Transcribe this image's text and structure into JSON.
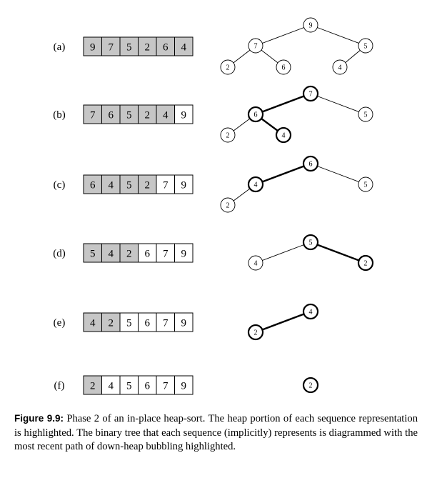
{
  "figure": {
    "rows": [
      {
        "label": "(a)",
        "cells": [
          {
            "value": "9",
            "heap": true
          },
          {
            "value": "7",
            "heap": true
          },
          {
            "value": "5",
            "heap": true
          },
          {
            "value": "2",
            "heap": true
          },
          {
            "value": "6",
            "heap": true
          },
          {
            "value": "4",
            "heap": true
          }
        ],
        "tree": {
          "nodes": [
            {
              "id": "n9",
              "value": "9"
            },
            {
              "id": "n7",
              "value": "7"
            },
            {
              "id": "n5",
              "value": "5"
            },
            {
              "id": "n2",
              "value": "2"
            },
            {
              "id": "n6",
              "value": "6"
            },
            {
              "id": "n4",
              "value": "4"
            }
          ],
          "edges": [
            {
              "from": "n9",
              "to": "n7",
              "highlighted": false
            },
            {
              "from": "n9",
              "to": "n5",
              "highlighted": false
            },
            {
              "from": "n7",
              "to": "n2",
              "highlighted": false
            },
            {
              "from": "n7",
              "to": "n6",
              "highlighted": false
            },
            {
              "from": "n5",
              "to": "n4",
              "highlighted": false
            }
          ],
          "highlighted_nodes": []
        }
      },
      {
        "label": "(b)",
        "cells": [
          {
            "value": "7",
            "heap": true
          },
          {
            "value": "6",
            "heap": true
          },
          {
            "value": "5",
            "heap": true
          },
          {
            "value": "2",
            "heap": true
          },
          {
            "value": "4",
            "heap": true
          },
          {
            "value": "9",
            "heap": false
          }
        ],
        "tree": {
          "nodes": [
            {
              "id": "n7",
              "value": "7"
            },
            {
              "id": "n6",
              "value": "6"
            },
            {
              "id": "n5",
              "value": "5"
            },
            {
              "id": "n2",
              "value": "2"
            },
            {
              "id": "n4",
              "value": "4"
            }
          ],
          "edges": [
            {
              "from": "n7",
              "to": "n6",
              "highlighted": true
            },
            {
              "from": "n7",
              "to": "n5",
              "highlighted": false
            },
            {
              "from": "n6",
              "to": "n2",
              "highlighted": false
            },
            {
              "from": "n6",
              "to": "n4",
              "highlighted": true
            }
          ],
          "highlighted_nodes": [
            "n7",
            "n6",
            "n4"
          ]
        }
      },
      {
        "label": "(c)",
        "cells": [
          {
            "value": "6",
            "heap": true
          },
          {
            "value": "4",
            "heap": true
          },
          {
            "value": "5",
            "heap": true
          },
          {
            "value": "2",
            "heap": true
          },
          {
            "value": "7",
            "heap": false
          },
          {
            "value": "9",
            "heap": false
          }
        ],
        "tree": {
          "nodes": [
            {
              "id": "n6",
              "value": "6"
            },
            {
              "id": "n4",
              "value": "4"
            },
            {
              "id": "n5",
              "value": "5"
            },
            {
              "id": "n2",
              "value": "2"
            }
          ],
          "edges": [
            {
              "from": "n6",
              "to": "n4",
              "highlighted": true
            },
            {
              "from": "n6",
              "to": "n5",
              "highlighted": false
            },
            {
              "from": "n4",
              "to": "n2",
              "highlighted": false
            }
          ],
          "highlighted_nodes": [
            "n6",
            "n4"
          ]
        }
      },
      {
        "label": "(d)",
        "cells": [
          {
            "value": "5",
            "heap": true
          },
          {
            "value": "4",
            "heap": true
          },
          {
            "value": "2",
            "heap": true
          },
          {
            "value": "6",
            "heap": false
          },
          {
            "value": "7",
            "heap": false
          },
          {
            "value": "9",
            "heap": false
          }
        ],
        "tree": {
          "nodes": [
            {
              "id": "n5",
              "value": "5"
            },
            {
              "id": "n4",
              "value": "4"
            },
            {
              "id": "n2",
              "value": "2"
            }
          ],
          "edges": [
            {
              "from": "n5",
              "to": "n4",
              "highlighted": false
            },
            {
              "from": "n5",
              "to": "n2",
              "highlighted": true
            }
          ],
          "highlighted_nodes": [
            "n5",
            "n2"
          ]
        }
      },
      {
        "label": "(e)",
        "cells": [
          {
            "value": "4",
            "heap": true
          },
          {
            "value": "2",
            "heap": true
          },
          {
            "value": "5",
            "heap": false
          },
          {
            "value": "6",
            "heap": false
          },
          {
            "value": "7",
            "heap": false
          },
          {
            "value": "9",
            "heap": false
          }
        ],
        "tree": {
          "nodes": [
            {
              "id": "n4",
              "value": "4"
            },
            {
              "id": "n2",
              "value": "2"
            }
          ],
          "edges": [
            {
              "from": "n4",
              "to": "n2",
              "highlighted": true
            }
          ],
          "highlighted_nodes": [
            "n4",
            "n2"
          ]
        }
      },
      {
        "label": "(f)",
        "cells": [
          {
            "value": "2",
            "heap": true
          },
          {
            "value": "4",
            "heap": false
          },
          {
            "value": "5",
            "heap": false
          },
          {
            "value": "6",
            "heap": false
          },
          {
            "value": "7",
            "heap": false
          },
          {
            "value": "9",
            "heap": false
          }
        ],
        "tree": {
          "nodes": [
            {
              "id": "n2",
              "value": "2"
            }
          ],
          "edges": [],
          "highlighted_nodes": [
            "n2"
          ]
        }
      }
    ]
  },
  "caption": {
    "label": "Figure 9.9:",
    "text": "Phase 2 of an in-place heap-sort. The heap portion of each sequence representation is highlighted. The binary tree that each sequence (implicitly) represents is diagrammed with the most recent path of down-heap bubbling highlighted."
  },
  "colors": {
    "heap_fill": "#c6c6c6",
    "sorted_fill": "#ffffff",
    "stroke": "#000000"
  }
}
